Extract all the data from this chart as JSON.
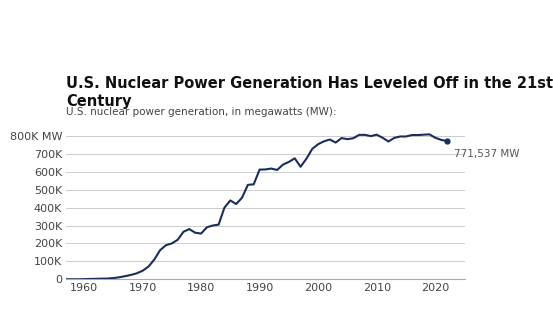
{
  "title": "U.S. Nuclear Power Generation Has Leveled Off in the 21st\nCentury",
  "subtitle": "U.S. nuclear power generation, in megawatts (MW):",
  "line_color": "#1a2e5a",
  "background_color": "#ffffff",
  "annotation": "771,537 MW",
  "years": [
    1957,
    1958,
    1959,
    1960,
    1961,
    1962,
    1963,
    1964,
    1965,
    1966,
    1967,
    1968,
    1969,
    1970,
    1971,
    1972,
    1973,
    1974,
    1975,
    1976,
    1977,
    1978,
    1979,
    1980,
    1981,
    1982,
    1983,
    1984,
    1985,
    1986,
    1987,
    1988,
    1989,
    1990,
    1991,
    1992,
    1993,
    1994,
    1995,
    1996,
    1997,
    1998,
    1999,
    2000,
    2001,
    2002,
    2003,
    2004,
    2005,
    2006,
    2007,
    2008,
    2009,
    2010,
    2011,
    2012,
    2013,
    2014,
    2015,
    2016,
    2017,
    2018,
    2019,
    2020,
    2021,
    2022
  ],
  "values": [
    0,
    0,
    0,
    518,
    1662,
    2368,
    3248,
    3982,
    6610,
    11000,
    17000,
    24000,
    33000,
    47000,
    70000,
    109000,
    162000,
    190000,
    200000,
    220000,
    265000,
    280000,
    260000,
    255000,
    290000,
    300000,
    305000,
    400000,
    440000,
    420000,
    455000,
    527000,
    530000,
    612000,
    613000,
    618000,
    610000,
    640000,
    655000,
    675000,
    628000,
    673000,
    728000,
    754000,
    770000,
    780000,
    763000,
    788000,
    782000,
    787000,
    806000,
    806000,
    799000,
    807000,
    790000,
    769000,
    789000,
    797000,
    797000,
    805000,
    805000,
    807000,
    809000,
    790000,
    778000,
    771537
  ],
  "ylim": [
    0,
    860000
  ],
  "yticks": [
    0,
    100000,
    200000,
    300000,
    400000,
    500000,
    600000,
    700000,
    800000
  ],
  "xlim": [
    1957,
    2025
  ],
  "xticks": [
    1960,
    1970,
    1980,
    1990,
    2000,
    2010,
    2020
  ]
}
